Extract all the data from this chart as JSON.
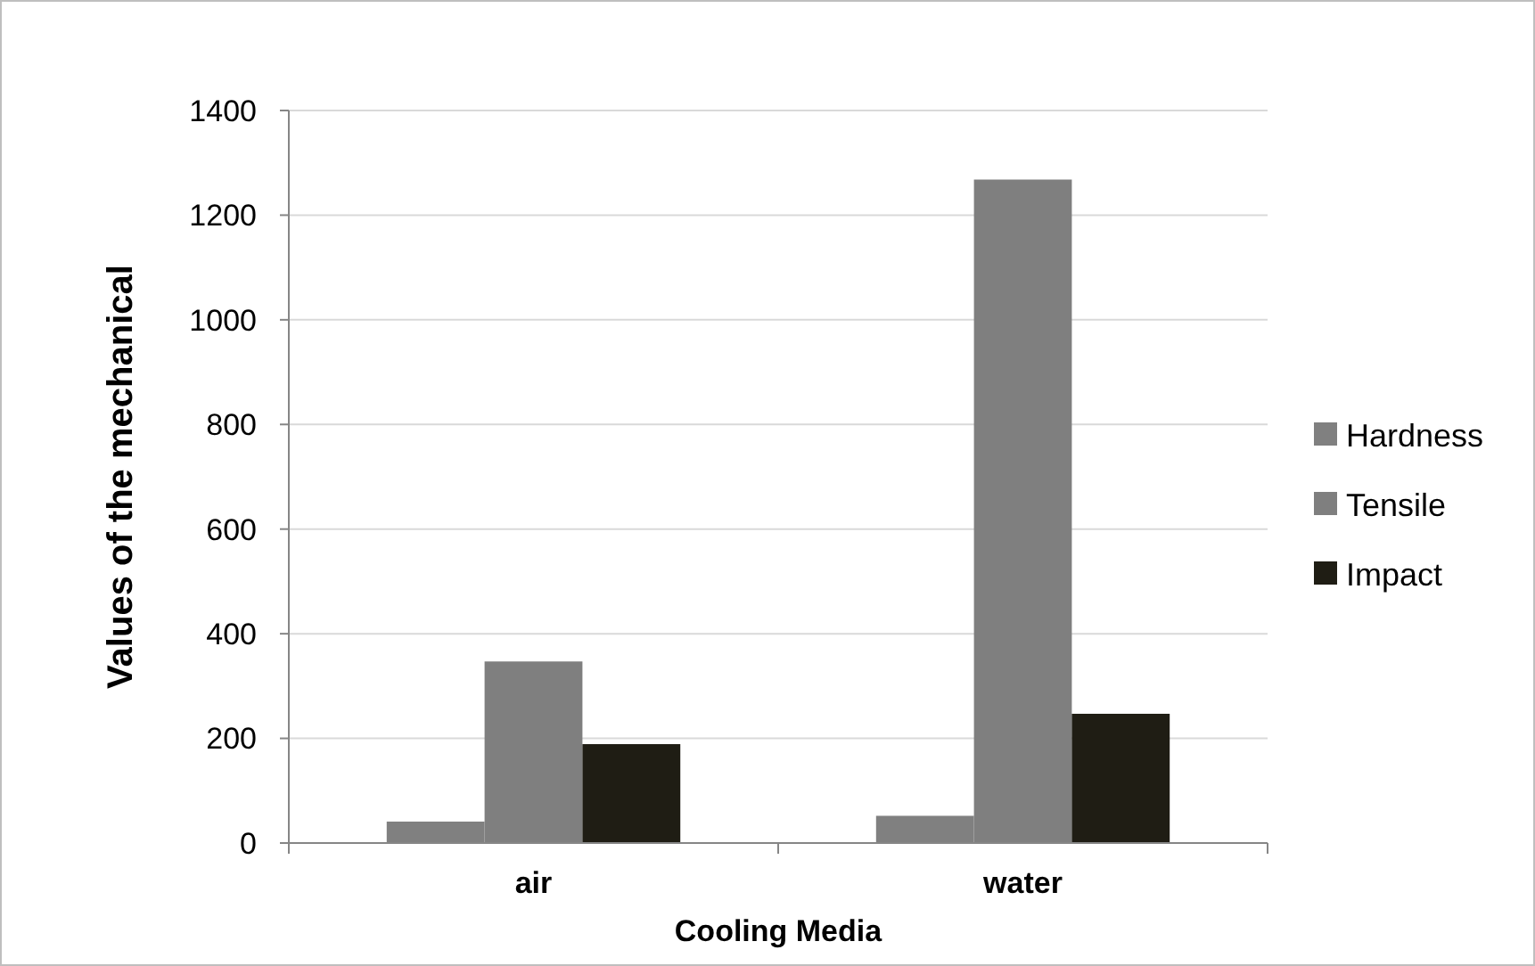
{
  "chart_data": {
    "type": "bar",
    "xlabel": "Cooling Media",
    "ylabel": "Values of the mechanical",
    "categories": [
      "air",
      "water"
    ],
    "series": [
      {
        "name": "Hardness",
        "color": "#808080",
        "values": [
          41,
          52
        ]
      },
      {
        "name": "Tensile",
        "color": "#7f7f7f",
        "values": [
          347,
          1268
        ]
      },
      {
        "name": "Impact",
        "color": "#1f1d14",
        "values": [
          189,
          247
        ]
      }
    ],
    "ylim": [
      0,
      1400
    ],
    "yticks": [
      0,
      200,
      400,
      600,
      800,
      1000,
      1200,
      1400
    ],
    "grid": "y",
    "legend": "right"
  }
}
